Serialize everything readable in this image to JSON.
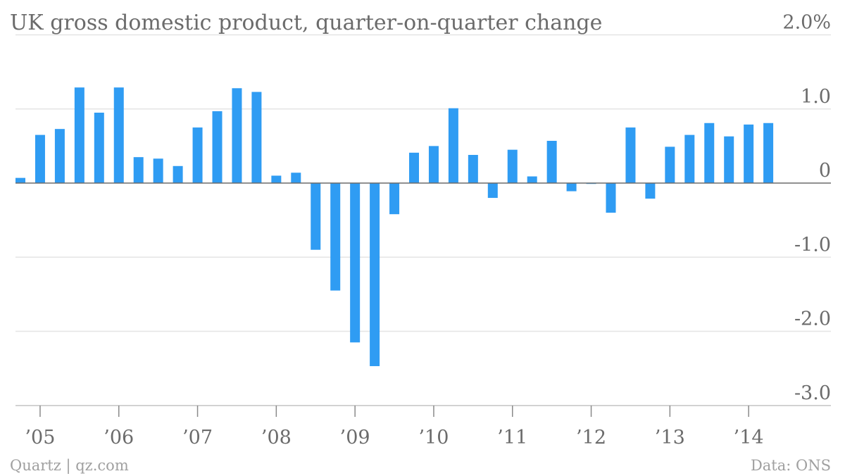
{
  "chart_data": {
    "type": "bar",
    "title": "UK gross domestic product, quarter-on-quarter change",
    "source": "Data: ONS",
    "credit": "Quartz | qz.com",
    "ylim": [
      -3.0,
      2.0
    ],
    "yticks": [
      {
        "value": 2.0,
        "label": "2.0%"
      },
      {
        "value": 1.0,
        "label": "1.0"
      },
      {
        "value": 0,
        "label": "0"
      },
      {
        "value": -1.0,
        "label": "-1.0"
      },
      {
        "value": -2.0,
        "label": "-2.0"
      },
      {
        "value": -3.0,
        "label": "-3.0"
      }
    ],
    "xticks": [
      {
        "label": "’05",
        "index": 1
      },
      {
        "label": "’06",
        "index": 5
      },
      {
        "label": "’07",
        "index": 9
      },
      {
        "label": "’08",
        "index": 13
      },
      {
        "label": "’09",
        "index": 17
      },
      {
        "label": "’10",
        "index": 21
      },
      {
        "label": "’11",
        "index": 25
      },
      {
        "label": "’12",
        "index": 29
      },
      {
        "label": "’13",
        "index": 33
      },
      {
        "label": "’14",
        "index": 37
      }
    ],
    "values": [
      0.07,
      0.65,
      0.73,
      1.29,
      0.95,
      1.29,
      0.35,
      0.33,
      0.23,
      0.75,
      0.97,
      1.28,
      1.23,
      0.1,
      0.14,
      -0.9,
      -1.45,
      -2.15,
      -2.47,
      -0.42,
      0.41,
      0.5,
      1.01,
      0.38,
      -0.2,
      0.45,
      0.09,
      0.57,
      -0.11,
      -0.01,
      -0.4,
      0.75,
      -0.21,
      0.49,
      0.65,
      0.81,
      0.63,
      0.79,
      0.81
    ],
    "colors": {
      "bar": "#2f9cf3",
      "grid": "#e4e4e4",
      "zero_line": "#6b6b6b",
      "text": "#6b6b6b",
      "footer": "#a0a0a0"
    },
    "grid": true,
    "legend": "none"
  }
}
